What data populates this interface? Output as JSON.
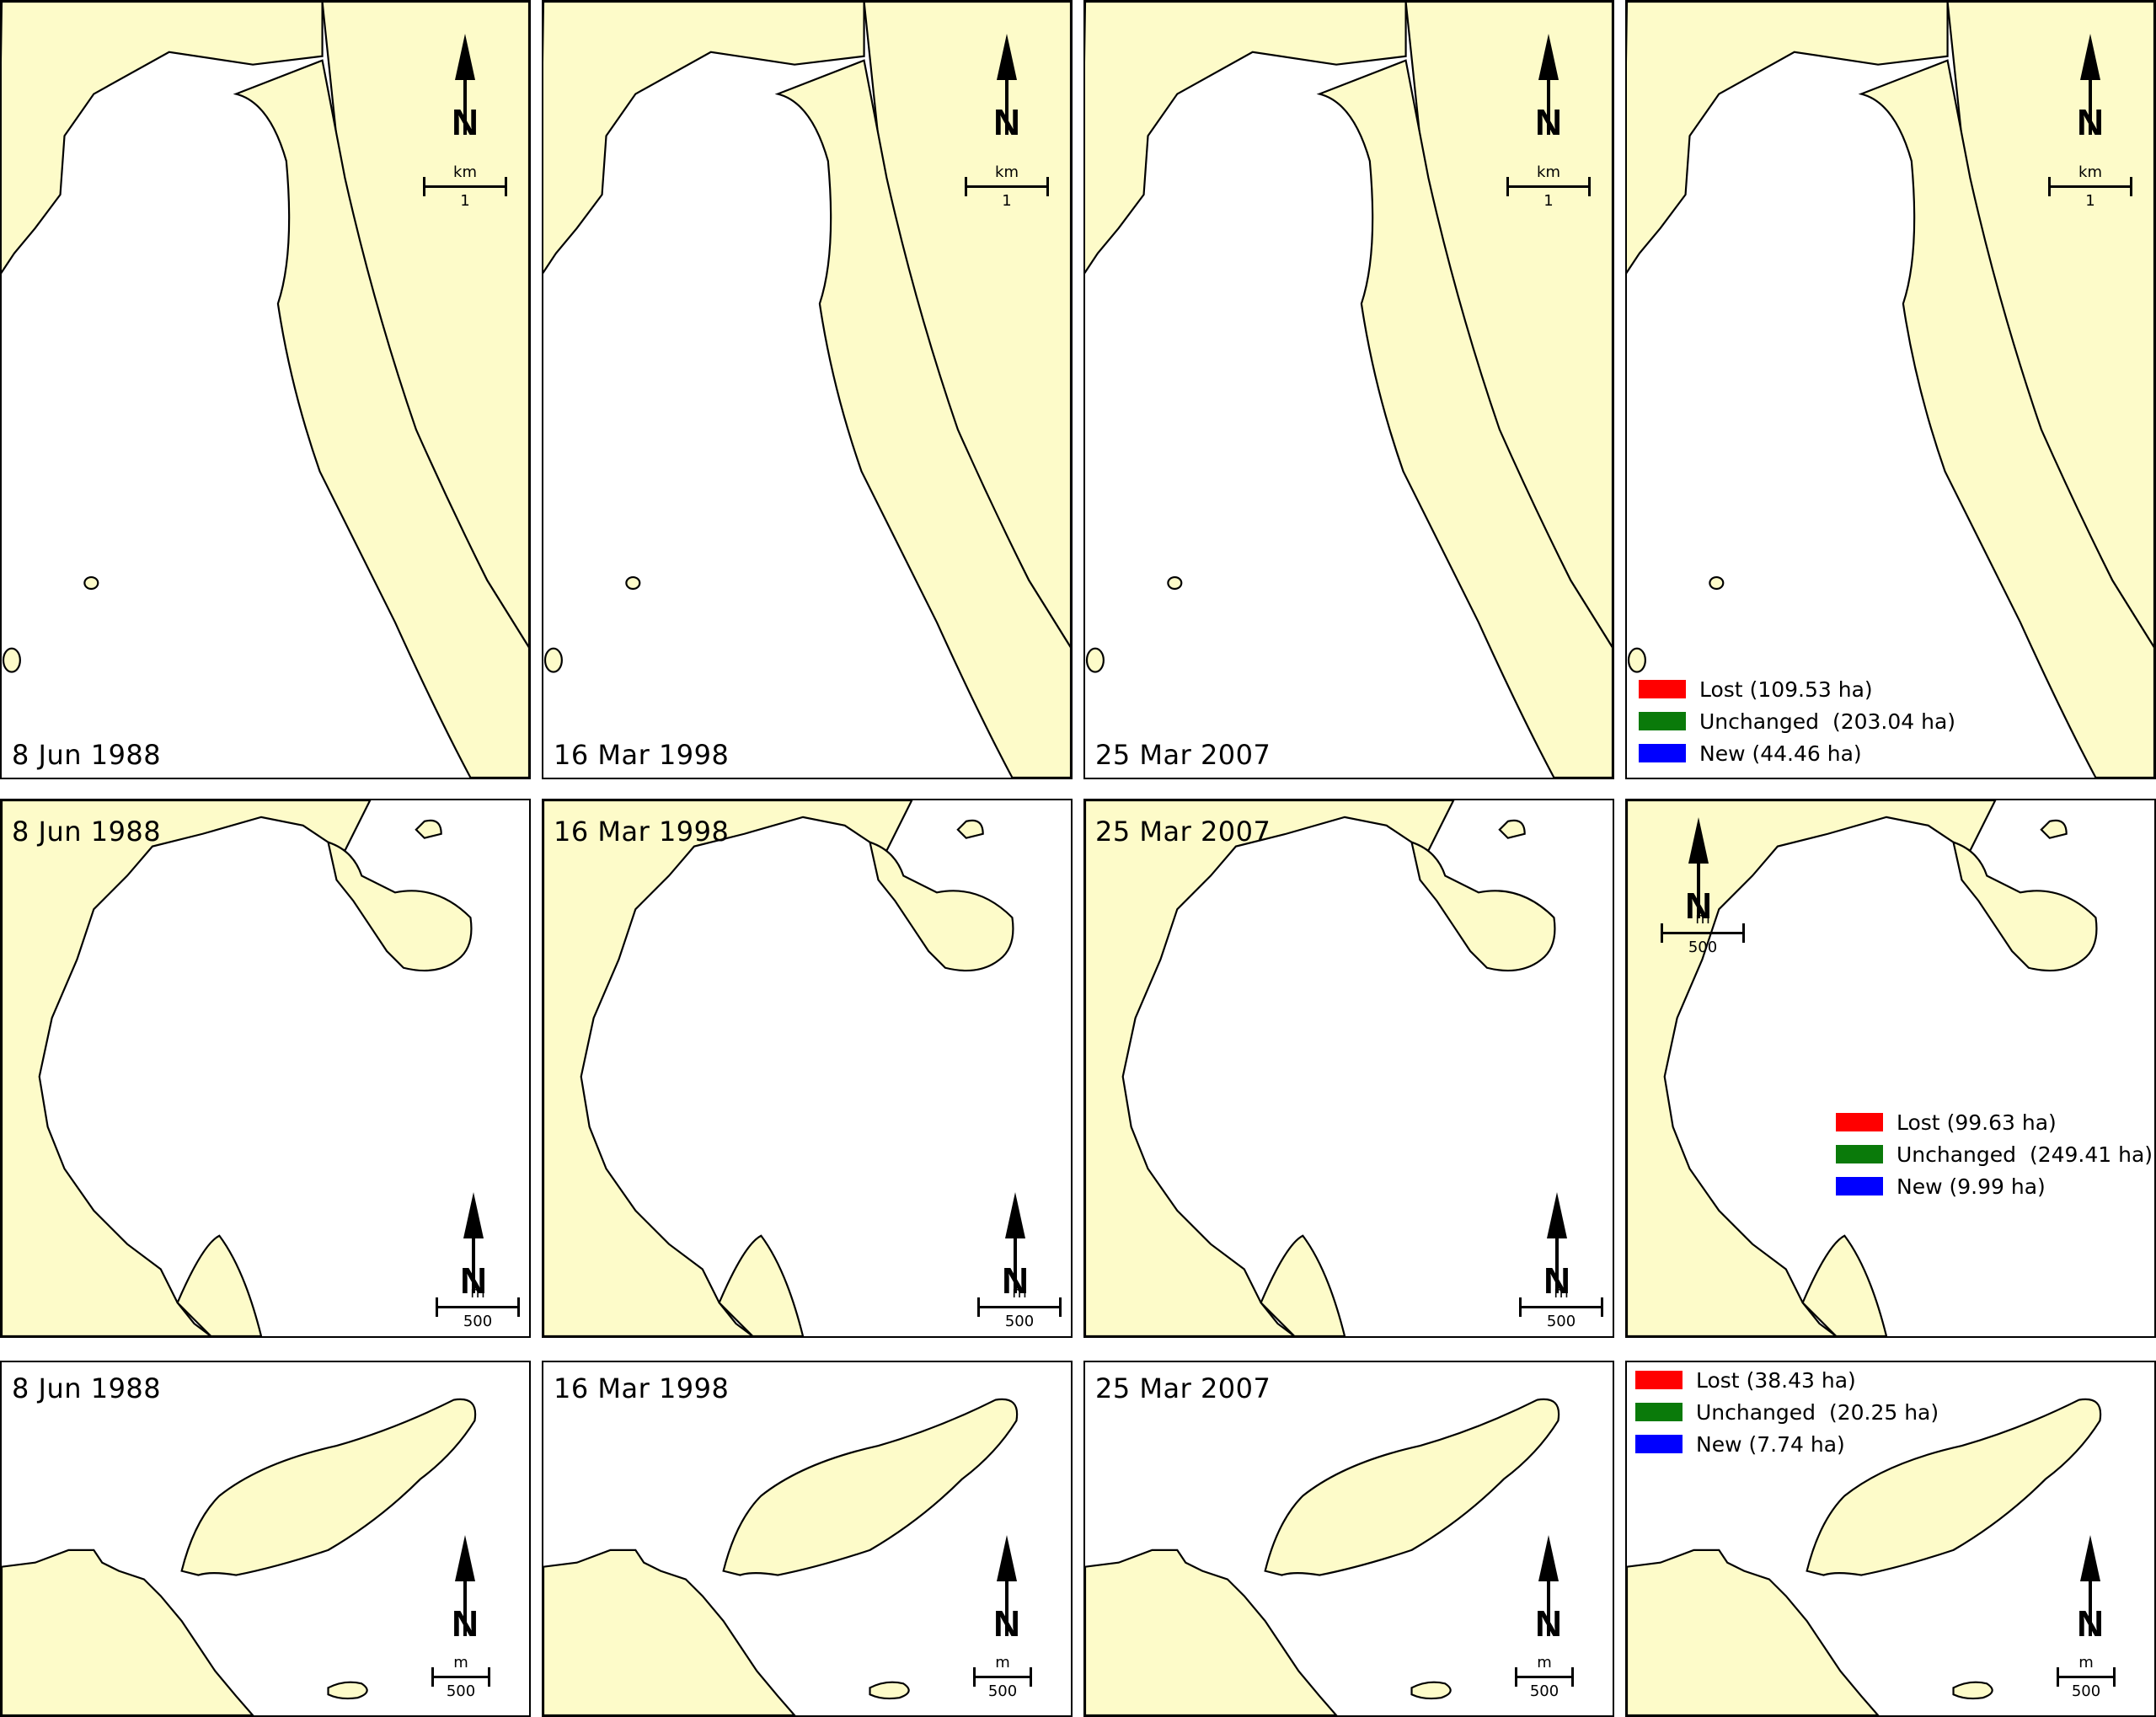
{
  "colors": {
    "land": "#fdfbc9",
    "mangrove": "#0a870a",
    "lost": "#ff0000",
    "unchanged": "#0a7a0a",
    "new": "#0000ff"
  },
  "icons": {
    "north_arrow": "north-arrow-icon"
  },
  "rows": [
    {
      "dates": [
        "8 Jun 1988",
        "16 Mar 1998",
        "25 Mar 2007"
      ],
      "scale": {
        "unit": "km",
        "value": "1"
      },
      "north_label": "N",
      "legend": [
        {
          "label": "Lost",
          "area": "(109.53 ha)"
        },
        {
          "label": "Unchanged",
          "area": "(203.04 ha)"
        },
        {
          "label": "New",
          "area": "(44.46 ha)"
        }
      ]
    },
    {
      "dates": [
        "8 Jun 1988",
        "16 Mar 1998",
        "25 Mar 2007"
      ],
      "scale": {
        "unit": "m",
        "value": "500"
      },
      "north_label": "N",
      "legend": [
        {
          "label": "Lost",
          "area": "(99.63 ha)"
        },
        {
          "label": "Unchanged",
          "area": "(249.41 ha)"
        },
        {
          "label": "New",
          "area": "(9.99 ha)"
        }
      ]
    },
    {
      "dates": [
        "8 Jun 1988",
        "16 Mar 1998",
        "25 Mar 2007"
      ],
      "scale": {
        "unit": "m",
        "value": "500"
      },
      "north_label": "N",
      "legend": [
        {
          "label": "Lost",
          "area": "(38.43 ha)"
        },
        {
          "label": "Unchanged",
          "area": "(20.25 ha)"
        },
        {
          "label": "New",
          "area": "(7.74 ha)"
        }
      ]
    }
  ]
}
